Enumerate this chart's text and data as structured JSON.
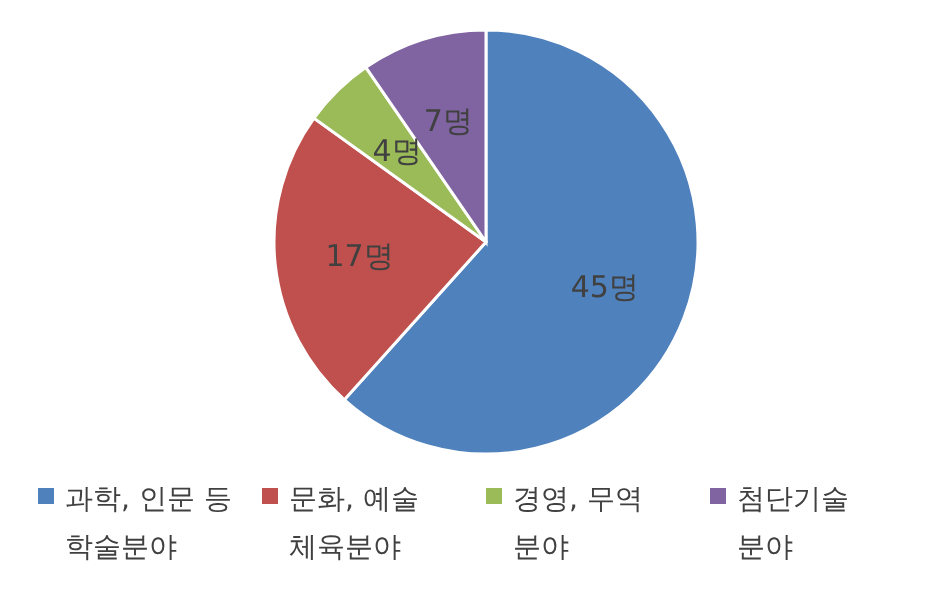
{
  "chart_data": {
    "type": "pie",
    "categories": [
      "과학, 인문 등 학술분야",
      "문화, 예술 체육분야",
      "경영, 무역 분야",
      "첨단기술 분야"
    ],
    "values": [
      45,
      17,
      4,
      7
    ],
    "colors": [
      "#4f81bd",
      "#c0504d",
      "#9bbb59",
      "#8064a2"
    ],
    "value_labels": [
      "45명",
      "17명",
      "4명",
      "7명"
    ],
    "legend": "bottom"
  }
}
